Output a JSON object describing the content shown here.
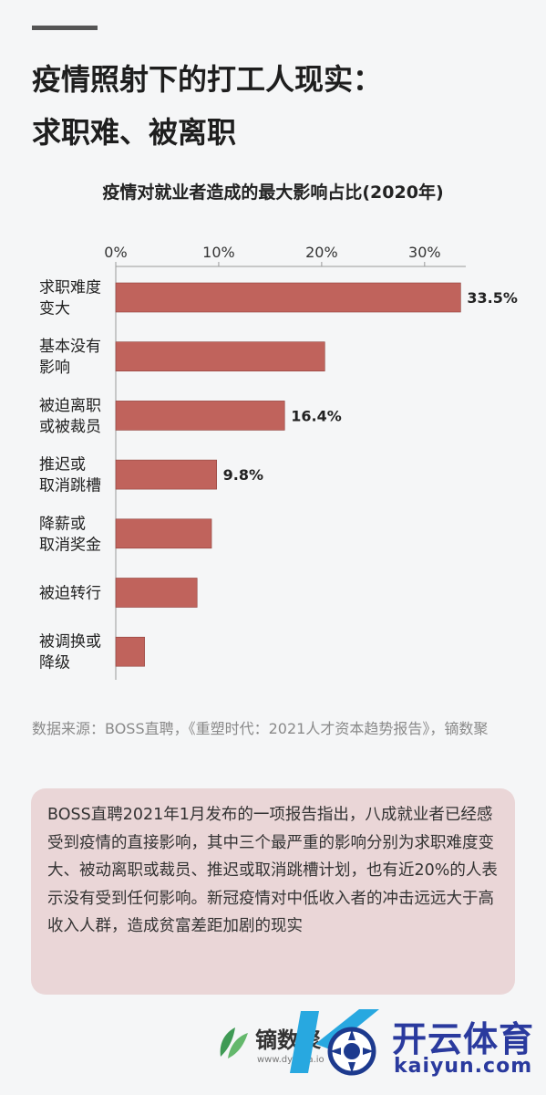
{
  "heading": {
    "line1": "疫情照射下的打工人现实：",
    "line2": "求职难、被离职"
  },
  "chart_data": {
    "type": "bar",
    "orientation": "horizontal",
    "title": "疫情对就业者造成的最大影响占比(2020年)",
    "xlim": [
      0,
      34
    ],
    "xticks": [
      0,
      10,
      20,
      30
    ],
    "xtick_labels": [
      "0%",
      "10%",
      "20%",
      "30%"
    ],
    "categories": [
      [
        "求职难度",
        "变大"
      ],
      [
        "基本没有",
        "影响"
      ],
      [
        "被迫离职",
        "或被裁员"
      ],
      [
        "推迟或",
        "取消跳槽"
      ],
      [
        "降薪或",
        "取消奖金"
      ],
      [
        "被迫转行"
      ],
      [
        "被调换或",
        "降级"
      ]
    ],
    "values": [
      33.5,
      20.3,
      16.4,
      9.8,
      9.3,
      7.9,
      2.8
    ],
    "data_labels": [
      "33.5%",
      "",
      "16.4%",
      "9.8%",
      "",
      "",
      ""
    ],
    "bar_color": "#c0635c",
    "grid": false,
    "legend": "none"
  },
  "source": "数据来源：BOSS直聘，《重塑时代：2021人才资本趋势报告》，镝数聚",
  "note": "BOSS直聘2021年1月发布的一项报告指出，八成就业者已经感受到疫情的直接影响，其中三个最严重的影响分别为求职难度变大、被动离职或裁员、推迟或取消跳槽计划，也有近20%的人表示没有受到任何影响。新冠疫情对中低收入者的冲击远远大于高收入人群，造成贫富差距加剧的现实",
  "footer": {
    "brand": "镝数聚",
    "brand_url": "www.dydata.io",
    "watermark": "开云体育",
    "watermark_url": "kaiyun.com"
  }
}
